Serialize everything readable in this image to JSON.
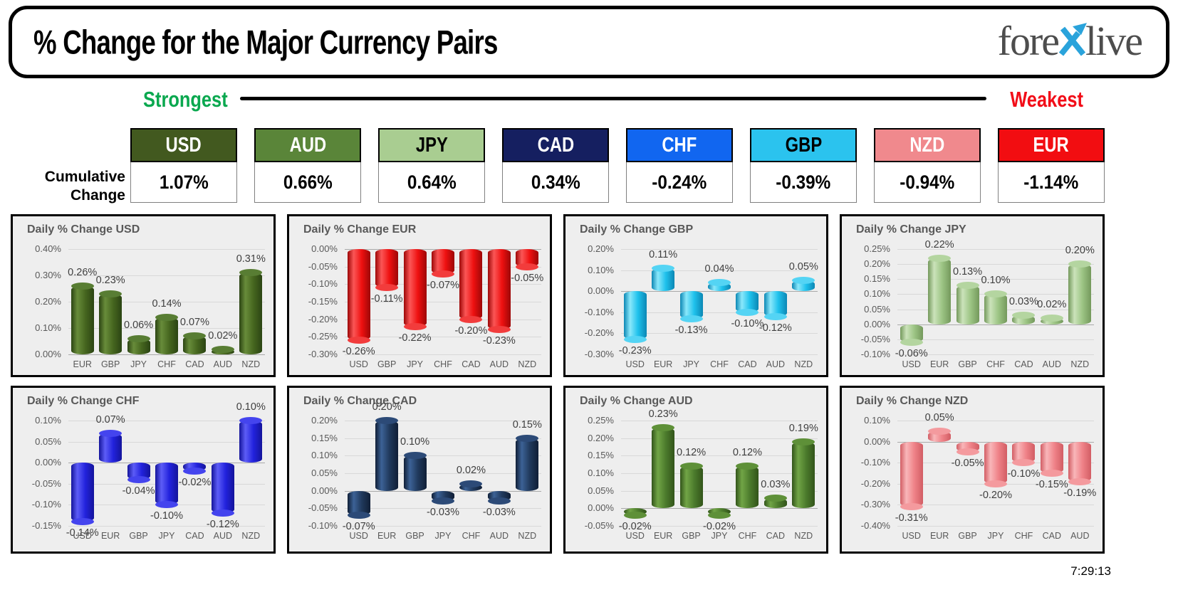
{
  "header": {
    "title": "% Change for the Major Currency Pairs",
    "logo_pre": "fore",
    "logo_post": "live",
    "logo_x_color": "#2aa3db",
    "logo_text_color": "#4d4d4d"
  },
  "ranking": {
    "strongest_label": "Strongest",
    "weakest_label": "Weakest",
    "strongest_color": "#0aa84f",
    "weakest_color": "#f20d18"
  },
  "cumulative": {
    "label1": "Cumulative",
    "label2": "Change"
  },
  "footer": {
    "time": "7:29:13"
  },
  "chart_data": [
    {
      "type": "table",
      "title": "Cumulative Change",
      "categories": [
        "USD",
        "AUD",
        "JPY",
        "CAD",
        "CHF",
        "GBP",
        "NZD",
        "EUR"
      ],
      "values": [
        1.07,
        0.66,
        0.64,
        0.34,
        -0.24,
        -0.39,
        -0.94,
        -1.14
      ],
      "labels": [
        "1.07%",
        "0.66%",
        "0.64%",
        "0.34%",
        "-0.24%",
        "-0.39%",
        "-0.94%",
        "-1.14%"
      ],
      "colors": [
        "#42591f",
        "#5a8539",
        "#a9cd91",
        "#151f60",
        "#1166f0",
        "#2bc3ee",
        "#f0898d",
        "#f20d11"
      ],
      "text_colors": [
        "#ffffff",
        "#ffffff",
        "#000000",
        "#ffffff",
        "#ffffff",
        "#000000",
        "#ffffff",
        "#ffffff"
      ]
    },
    {
      "type": "bar",
      "id": "usd",
      "title": "Daily % Change USD",
      "categories": [
        "EUR",
        "GBP",
        "JPY",
        "CHF",
        "CAD",
        "AUD",
        "NZD"
      ],
      "values": [
        0.26,
        0.23,
        0.06,
        0.14,
        0.07,
        0.02,
        0.31
      ],
      "labels": [
        "0.26%",
        "0.23%",
        "0.06%",
        "0.14%",
        "0.07%",
        "0.02%",
        "0.31%"
      ],
      "ylim": [
        0,
        0.4
      ],
      "yticks": [
        "0.40%",
        "0.30%",
        "0.20%",
        "0.10%",
        "0.00%"
      ],
      "bar_color": "#46661f",
      "bar_highlight": "#688c3a",
      "bar_shadow": "#2b4413",
      "cap_color": "#587d33",
      "grid": "on",
      "legend": "none"
    },
    {
      "type": "bar",
      "id": "eur",
      "title": "Daily % Change EUR",
      "categories": [
        "USD",
        "GBP",
        "JPY",
        "CHF",
        "CAD",
        "AUD",
        "NZD"
      ],
      "values": [
        -0.26,
        -0.11,
        -0.22,
        -0.07,
        -0.2,
        -0.23,
        -0.05
      ],
      "labels": [
        "-0.26%",
        "-0.11%",
        "-0.22%",
        "-0.07%",
        "-0.20%",
        "-0.23%",
        "-0.05%"
      ],
      "ylim": [
        -0.3,
        0
      ],
      "yticks": [
        "0.00%",
        "-0.05%",
        "-0.10%",
        "-0.15%",
        "-0.20%",
        "-0.25%",
        "-0.30%"
      ],
      "bar_color": "#ee1010",
      "bar_highlight": "#fb5656",
      "bar_shadow": "#9d0707",
      "cap_color": "#f23c3c",
      "grid": "on",
      "legend": "none"
    },
    {
      "type": "bar",
      "id": "gbp",
      "title": "Daily % Change GBP",
      "categories": [
        "USD",
        "EUR",
        "JPY",
        "CHF",
        "CAD",
        "AUD",
        "NZD"
      ],
      "values": [
        -0.23,
        0.11,
        -0.13,
        0.04,
        -0.1,
        -0.12,
        0.05
      ],
      "labels": [
        "-0.23%",
        "0.11%",
        "-0.13%",
        "0.04%",
        "-0.10%",
        "-0.12%",
        "0.05%"
      ],
      "ylim": [
        -0.3,
        0.2
      ],
      "yticks": [
        "0.20%",
        "0.10%",
        "0.00%",
        "-0.10%",
        "-0.20%",
        "-0.30%"
      ],
      "bar_color": "#1ec1ec",
      "bar_highlight": "#8ae8fb",
      "bar_shadow": "#0c87b4",
      "cap_color": "#54d4f4",
      "grid": "on",
      "legend": "none"
    },
    {
      "type": "bar",
      "id": "jpy",
      "title": "Daily % Change JPY",
      "categories": [
        "USD",
        "EUR",
        "GBP",
        "CHF",
        "CAD",
        "AUD",
        "NZD"
      ],
      "values": [
        -0.06,
        0.22,
        0.13,
        0.1,
        0.03,
        0.02,
        0.2
      ],
      "labels": [
        "-0.06%",
        "0.22%",
        "0.13%",
        "0.10%",
        "0.03%",
        "0.02%",
        "0.20%"
      ],
      "ylim": [
        -0.1,
        0.25
      ],
      "yticks": [
        "0.25%",
        "0.20%",
        "0.15%",
        "0.10%",
        "0.05%",
        "0.00%",
        "-0.05%",
        "-0.10%"
      ],
      "bar_color": "#9cc484",
      "bar_highlight": "#cbe3ba",
      "bar_shadow": "#74995c",
      "cap_color": "#b4d5a0",
      "grid": "on",
      "legend": "none"
    },
    {
      "type": "bar",
      "id": "chf",
      "title": "Daily % Change CHF",
      "categories": [
        "USD",
        "EUR",
        "GBP",
        "JPY",
        "CAD",
        "AUD",
        "NZD"
      ],
      "values": [
        -0.14,
        0.07,
        -0.04,
        -0.1,
        -0.02,
        -0.12,
        0.1
      ],
      "labels": [
        "-0.14%",
        "0.07%",
        "-0.04%",
        "-0.10%",
        "-0.02%",
        "-0.12%",
        "0.10%"
      ],
      "ylim": [
        -0.15,
        0.1
      ],
      "yticks": [
        "0.10%",
        "0.05%",
        "0.00%",
        "-0.05%",
        "-0.10%",
        "-0.15%"
      ],
      "bar_color": "#2222dd",
      "bar_highlight": "#5d5df7",
      "bar_shadow": "#14149b",
      "cap_color": "#4444ee",
      "grid": "on",
      "legend": "none"
    },
    {
      "type": "bar",
      "id": "cad",
      "title": "Daily % Change CAD",
      "categories": [
        "USD",
        "EUR",
        "GBP",
        "JPY",
        "CHF",
        "AUD",
        "NZD"
      ],
      "values": [
        -0.07,
        0.2,
        0.1,
        -0.03,
        0.02,
        -0.03,
        0.15
      ],
      "labels": [
        "-0.07%",
        "0.20%",
        "0.10%",
        "-0.03%",
        "0.02%",
        "-0.03%",
        "0.15%"
      ],
      "ylim": [
        -0.1,
        0.2
      ],
      "yticks": [
        "0.20%",
        "0.15%",
        "0.10%",
        "0.05%",
        "0.00%",
        "-0.05%",
        "-0.10%"
      ],
      "bar_color": "#20395c",
      "bar_highlight": "#3c6296",
      "bar_shadow": "#101f36",
      "cap_color": "#2c4a77",
      "grid": "on",
      "legend": "none"
    },
    {
      "type": "bar",
      "id": "aud",
      "title": "Daily % Change AUD",
      "categories": [
        "USD",
        "EUR",
        "GBP",
        "JPY",
        "CHF",
        "CAD",
        "NZD"
      ],
      "values": [
        -0.02,
        0.23,
        0.12,
        -0.02,
        0.12,
        0.03,
        0.19
      ],
      "labels": [
        "-0.02%",
        "0.23%",
        "0.12%",
        "-0.02%",
        "0.12%",
        "0.03%",
        "0.19%"
      ],
      "ylim": [
        -0.05,
        0.25
      ],
      "yticks": [
        "0.25%",
        "0.20%",
        "0.15%",
        "0.10%",
        "0.05%",
        "0.00%",
        "-0.05%"
      ],
      "bar_color": "#4c7b2c",
      "bar_highlight": "#71a546",
      "bar_shadow": "#32541a",
      "cap_color": "#5e9038",
      "grid": "on",
      "legend": "none"
    },
    {
      "type": "bar",
      "id": "nzd",
      "title": "Daily % Change NZD",
      "categories": [
        "USD",
        "EUR",
        "GBP",
        "JPY",
        "CHF",
        "CAD",
        "AUD"
      ],
      "values": [
        -0.31,
        0.05,
        -0.05,
        -0.2,
        -0.1,
        -0.15,
        -0.19
      ],
      "labels": [
        "-0.31%",
        "0.05%",
        "-0.05%",
        "-0.20%",
        "-0.10%",
        "-0.15%",
        "-0.19%"
      ],
      "ylim": [
        -0.4,
        0.1
      ],
      "yticks": [
        "0.10%",
        "0.00%",
        "-0.10%",
        "-0.20%",
        "-0.30%",
        "-0.40%"
      ],
      "bar_color": "#ef8288",
      "bar_highlight": "#f9b6b9",
      "bar_shadow": "#d25d64",
      "cap_color": "#f49a9e",
      "grid": "on",
      "legend": "none"
    }
  ]
}
